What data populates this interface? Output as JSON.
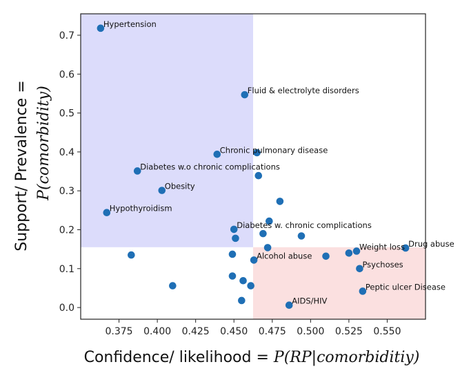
{
  "chart_data": {
    "type": "scatter",
    "xlabel_prefix": "Confidence/ likelihood = ",
    "xlabel_math": "P(RP|comorbiditiy)",
    "ylabel_line1": "Support/ Prevalence =",
    "ylabel_math": "P(comorbidity)",
    "xlim": [
      0.35,
      0.575
    ],
    "ylim": [
      -0.03,
      0.755
    ],
    "xticks": [
      0.375,
      0.4,
      0.425,
      0.45,
      0.475,
      0.5,
      0.525,
      0.55
    ],
    "xtick_labels": [
      "0.375",
      "0.400",
      "0.425",
      "0.450",
      "0.475",
      "0.500",
      "0.525",
      "0.550"
    ],
    "yticks": [
      0.0,
      0.1,
      0.2,
      0.3,
      0.4,
      0.5,
      0.6,
      0.7
    ],
    "ytick_labels": [
      "0.0",
      "0.1",
      "0.2",
      "0.3",
      "0.4",
      "0.5",
      "0.6",
      "0.7"
    ],
    "marker_color": "#1f6fb5",
    "regions": [
      {
        "name": "high-prevalence-region",
        "x": [
          0.35,
          0.4625
        ],
        "y": [
          0.155,
          0.755
        ],
        "color": "#dcdcfb"
      },
      {
        "name": "high-likelihood-region",
        "x": [
          0.4625,
          0.575
        ],
        "y": [
          -0.03,
          0.155
        ],
        "color": "#fbe0e0"
      }
    ],
    "points": [
      {
        "x": 0.363,
        "y": 0.718,
        "label": "Hypertension"
      },
      {
        "x": 0.457,
        "y": 0.547,
        "label": "Fluid & electrolyte disorders"
      },
      {
        "x": 0.439,
        "y": 0.394,
        "label": "Chronic pulmonary disease"
      },
      {
        "x": 0.465,
        "y": 0.398,
        "label": ""
      },
      {
        "x": 0.387,
        "y": 0.351,
        "label": "Diabetes w.o chronic complications"
      },
      {
        "x": 0.466,
        "y": 0.339,
        "label": ""
      },
      {
        "x": 0.403,
        "y": 0.301,
        "label": "Obesity"
      },
      {
        "x": 0.48,
        "y": 0.273,
        "label": ""
      },
      {
        "x": 0.367,
        "y": 0.244,
        "label": "Hypothyroidism"
      },
      {
        "x": 0.473,
        "y": 0.222,
        "label": ""
      },
      {
        "x": 0.45,
        "y": 0.201,
        "label": "Diabetes w. chronic complications"
      },
      {
        "x": 0.469,
        "y": 0.19,
        "label": ""
      },
      {
        "x": 0.494,
        "y": 0.184,
        "label": ""
      },
      {
        "x": 0.451,
        "y": 0.178,
        "label": ""
      },
      {
        "x": 0.472,
        "y": 0.154,
        "label": ""
      },
      {
        "x": 0.562,
        "y": 0.153,
        "label": "Drug abuse"
      },
      {
        "x": 0.53,
        "y": 0.145,
        "label": "Weight loss"
      },
      {
        "x": 0.525,
        "y": 0.14,
        "label": ""
      },
      {
        "x": 0.383,
        "y": 0.135,
        "label": ""
      },
      {
        "x": 0.449,
        "y": 0.137,
        "label": ""
      },
      {
        "x": 0.51,
        "y": 0.132,
        "label": ""
      },
      {
        "x": 0.463,
        "y": 0.122,
        "label": "Alcohol abuse"
      },
      {
        "x": 0.532,
        "y": 0.1,
        "label": "Psychoses"
      },
      {
        "x": 0.449,
        "y": 0.081,
        "label": ""
      },
      {
        "x": 0.456,
        "y": 0.069,
        "label": ""
      },
      {
        "x": 0.41,
        "y": 0.056,
        "label": ""
      },
      {
        "x": 0.461,
        "y": 0.056,
        "label": ""
      },
      {
        "x": 0.534,
        "y": 0.042,
        "label": "Peptic ulcer Disease"
      },
      {
        "x": 0.455,
        "y": 0.018,
        "label": ""
      },
      {
        "x": 0.486,
        "y": 0.006,
        "label": "AIDS/HIV"
      }
    ]
  }
}
